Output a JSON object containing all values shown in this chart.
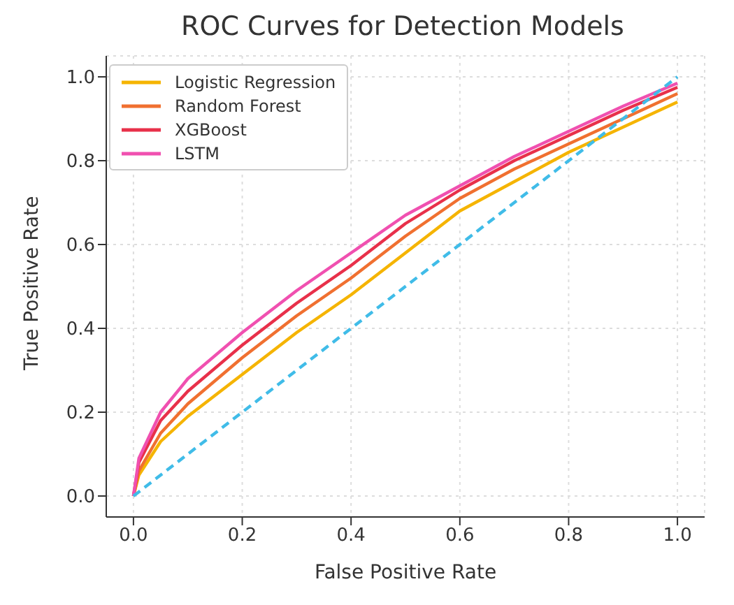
{
  "chart_data": {
    "type": "line",
    "title": "ROC Curves for Detection Models",
    "xlabel": "False Positive Rate",
    "ylabel": "True Positive Rate",
    "x": [
      0,
      0.01,
      0.05,
      0.1,
      0.2,
      0.3,
      0.4,
      0.5,
      0.6,
      0.7,
      0.8,
      0.9,
      1.0
    ],
    "series": [
      {
        "name": "Logistic Regression",
        "color": "#f5b400",
        "values": [
          0,
          0.05,
          0.13,
          0.19,
          0.29,
          0.39,
          0.48,
          0.58,
          0.68,
          0.75,
          0.82,
          0.88,
          0.94
        ]
      },
      {
        "name": "Random Forest",
        "color": "#f07030",
        "values": [
          0,
          0.06,
          0.15,
          0.22,
          0.33,
          0.43,
          0.52,
          0.62,
          0.71,
          0.78,
          0.84,
          0.9,
          0.96
        ]
      },
      {
        "name": "XGBoost",
        "color": "#e8304a",
        "values": [
          0,
          0.08,
          0.18,
          0.25,
          0.36,
          0.46,
          0.55,
          0.65,
          0.73,
          0.8,
          0.86,
          0.92,
          0.975
        ]
      },
      {
        "name": "LSTM",
        "color": "#f050b0",
        "values": [
          0,
          0.09,
          0.2,
          0.28,
          0.39,
          0.49,
          0.58,
          0.67,
          0.74,
          0.81,
          0.87,
          0.93,
          0.985
        ]
      },
      {
        "color": "#40bce8",
        "line_style": "dashed",
        "x": [
          0,
          1
        ],
        "values": [
          0,
          1
        ]
      }
    ],
    "xlim": [
      -0.05,
      1.05
    ],
    "ylim": [
      -0.05,
      1.05
    ],
    "xticks": [
      {
        "value": 0,
        "label": "0.0"
      },
      0.2,
      0.4,
      0.6,
      0.8,
      {
        "value": 1,
        "label": "1.0"
      }
    ],
    "yticks": [
      {
        "value": 0,
        "label": "0.0"
      },
      0.2,
      0.4,
      0.6,
      0.8,
      {
        "value": 1,
        "label": "1.0"
      }
    ],
    "grid": true,
    "legend": "top left",
    "marker": "none",
    "line_style": "solid"
  }
}
